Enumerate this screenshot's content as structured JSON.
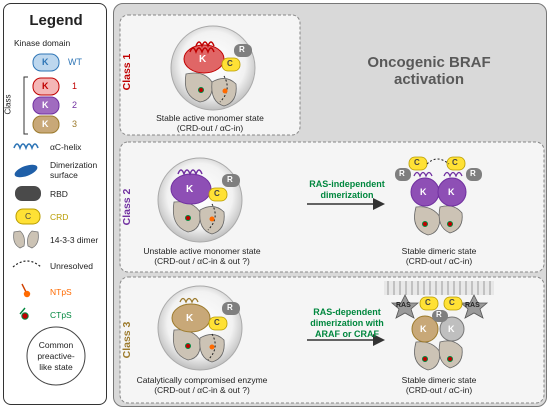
{
  "legend": {
    "title": "Legend",
    "kinase_domain_heading": "Kinase domain",
    "class_label": "Class",
    "kinase_letter": "K",
    "items": [
      {
        "label": "WT",
        "color": "#2e75b6"
      },
      {
        "label": "1",
        "color": "#c00000"
      },
      {
        "label": "2",
        "color": "#7030a0"
      },
      {
        "label": "3",
        "color": "#9c7a2c"
      }
    ],
    "ac_helix": "αC-helix",
    "dimerization_surface": "Dimerization surface",
    "rbd": "RBD",
    "crd_letter": "C",
    "crd": "CRD",
    "dimer_1433": "14-3-3 dimer",
    "unresolved": "Unresolved",
    "ntps": "NTpS",
    "ctps": "CTpS",
    "common_state": "Common preactive-like state"
  },
  "main": {
    "title": "Oncogenic BRAF activation",
    "class1": {
      "label": "Class 1",
      "caption": "Stable active monomer state",
      "caption2": "(CRD-out / αC-in)"
    },
    "class2": {
      "label": "Class 2",
      "arrow_label": "RAS-independent dimerization",
      "left_caption": "Unstable active monomer state",
      "left_caption2": "(CRD-out / αC-in & out ?)",
      "right_caption": "Stable dimeric state",
      "right_caption2": "(CRD-out / αC-in)"
    },
    "class3": {
      "label": "Class 3",
      "arrow_label": "RAS-dependent dimerization with ARAF or CRAF",
      "left_caption": "Catalytically compromised enzyme",
      "left_caption2": "(CRD-out / αC-in & out ?)",
      "right_caption": "Stable dimeric state",
      "right_caption2": "(CRD-out / αC-in)",
      "ras_label": "RAS"
    },
    "letters": {
      "k": "K",
      "c": "C",
      "r": "R"
    }
  },
  "colors": {
    "wt": "#2e75b6",
    "class1": "#c00000",
    "class2": "#7030a0",
    "class3": "#9c7a2c",
    "crd": "#ffe135",
    "rbd": "#555555",
    "green_text": "#00873e",
    "orange": "#ff6a00"
  }
}
